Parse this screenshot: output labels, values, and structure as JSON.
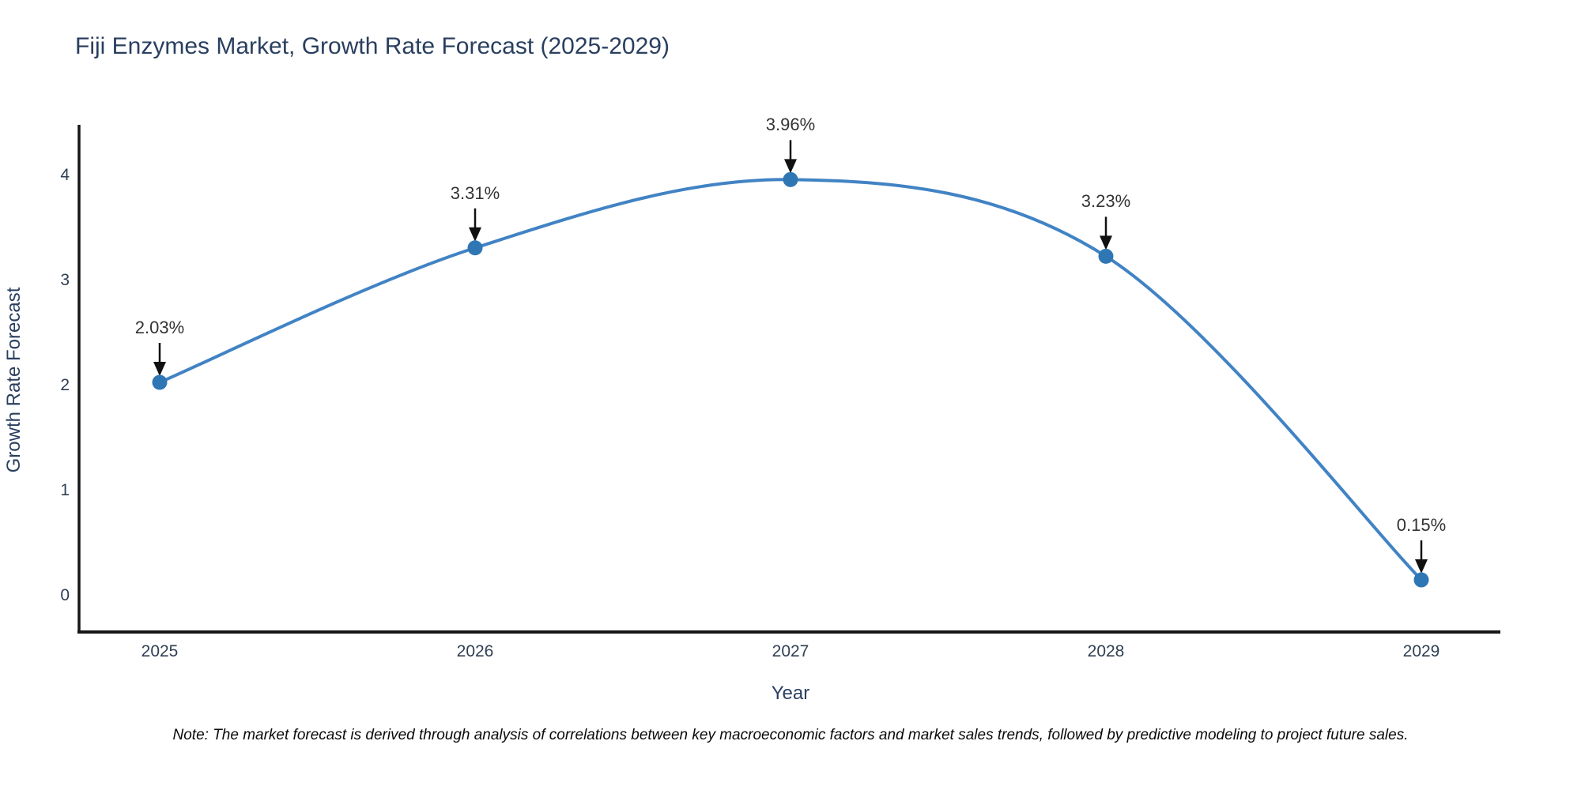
{
  "title": "Fiji Enzymes Market, Growth Rate Forecast (2025-2029)",
  "note": "Note: The market forecast is derived through analysis of correlations between key macroeconomic factors and market sales trends, followed by predictive modeling to project future sales.",
  "chart_data": {
    "type": "line",
    "title": "Fiji Enzymes Market, Growth Rate Forecast (2025-2029)",
    "x": [
      2025,
      2026,
      2027,
      2028,
      2029
    ],
    "values": [
      2.03,
      3.31,
      3.96,
      3.23,
      0.15
    ],
    "point_labels": [
      "2.03%",
      "3.31%",
      "3.96%",
      "3.23%",
      "0.15%"
    ],
    "xlabel": "Year",
    "ylabel": "Growth Rate Forecast",
    "yticks": [
      0,
      1,
      2,
      3,
      4
    ],
    "ylim": [
      -0.35,
      4.47
    ],
    "xlim": [
      2024.74,
      2029.25
    ],
    "grid": false,
    "legend": "none",
    "line_shape": "spline",
    "annotation_arrows": "down",
    "colors": {
      "line": "#4183c4",
      "marker": "#2f77b4",
      "axis": "#161616",
      "axis_text": "#2f3f53",
      "title_text": "#2a3f5f",
      "annotation_text": "#333333",
      "arrow": "#111111",
      "background": "#ffffff"
    }
  }
}
